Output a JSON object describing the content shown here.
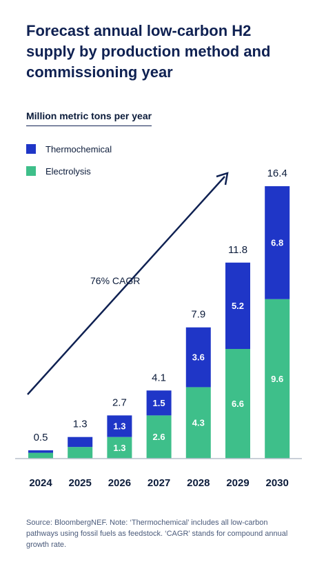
{
  "header": {
    "title": "Forecast annual low-carbon H2 supply by production method and commissioning year"
  },
  "unit_label": "Million metric tons per year",
  "annotation": "76% CAGR",
  "source": "Source: BloombergNEF. Note: ‘Thermochemical’ includes all low-carbon pathways using fossil fuels as feedstock. ‘CAGR’ stands for compound annual growth rate.",
  "colors": {
    "thermochemical": "#1f36c7",
    "electrolysis": "#3ebf8a",
    "text": "#0b1b3a",
    "arrow": "#0f2152"
  },
  "chart_data": {
    "type": "bar",
    "stacked": true,
    "categories": [
      "2024",
      "2025",
      "2026",
      "2027",
      "2028",
      "2029",
      "2030"
    ],
    "series": [
      {
        "name": "Electrolysis",
        "values": [
          0.35,
          0.7,
          1.3,
          2.6,
          4.3,
          6.6,
          9.6
        ],
        "labels": [
          "",
          "",
          "1.3",
          "2.6",
          "4.3",
          "6.6",
          "9.6"
        ]
      },
      {
        "name": "Thermochemical",
        "values": [
          0.15,
          0.6,
          1.3,
          1.5,
          3.6,
          5.2,
          6.8
        ],
        "labels": [
          "",
          "",
          "1.3",
          "1.5",
          "3.6",
          "5.2",
          "6.8"
        ]
      }
    ],
    "totals": [
      "0.5",
      "1.3",
      "2.7",
      "4.1",
      "7.9",
      "11.8",
      "16.4"
    ],
    "ylabel": "Million metric tons per year",
    "ylim": [
      0,
      16.4
    ],
    "grid": false,
    "legend_position": "top-left"
  }
}
